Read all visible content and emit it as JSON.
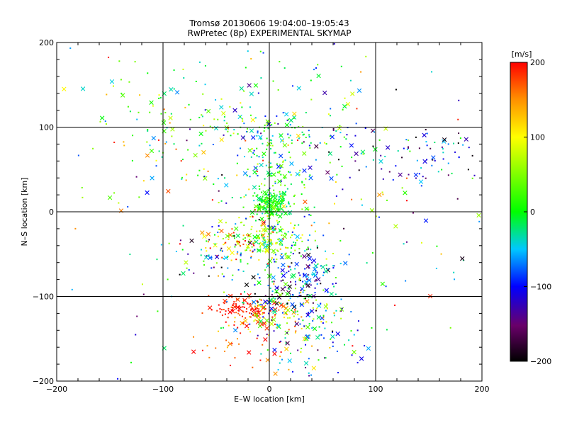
{
  "chart_data": {
    "type": "scatter",
    "title": "Tromsø 20130606 19:04:00–19:05:43",
    "subtitle": "RwPretec (8p) EXPERIMENTAL SKYMAP",
    "xlabel": "E–W location [km]",
    "ylabel": "N–S location [km]",
    "xlim": [
      -200,
      200
    ],
    "ylim": [
      -200,
      200
    ],
    "x_ticks": [
      -200,
      -100,
      0,
      100,
      200
    ],
    "y_ticks": [
      -200,
      -100,
      0,
      100,
      200
    ],
    "x_tick_labels": [
      "−200",
      "−100",
      "0",
      "100",
      "200"
    ],
    "y_tick_labels": [
      "−200",
      "−100",
      "0",
      "100",
      "200"
    ],
    "grid": true,
    "colorbar": {
      "label": "[m/s]",
      "range": [
        -200,
        200
      ],
      "ticks": [
        200,
        100,
        0,
        -100,
        -200
      ],
      "tick_labels": [
        "200",
        "100",
        "0",
        "−100",
        "−200"
      ],
      "colormap": "rainbow: black → purple → blue → cyan → green → yellow → red"
    },
    "markers": [
      "cross",
      "dot"
    ],
    "clusters": [
      {
        "x": 0,
        "y": 10,
        "sx": 8,
        "sy": 8,
        "n": 160,
        "v": 10,
        "vs": 25
      },
      {
        "x": 0,
        "y": -30,
        "sx": 15,
        "sy": 10,
        "n": 140,
        "v": 50,
        "vs": 50
      },
      {
        "x": 5,
        "y": 40,
        "sx": 15,
        "sy": 20,
        "n": 110,
        "v": 0,
        "vs": 45
      },
      {
        "x": 10,
        "y": 95,
        "sx": 40,
        "sy": 12,
        "n": 110,
        "v": -10,
        "vs": 70
      },
      {
        "x": -20,
        "y": -115,
        "sx": 15,
        "sy": 7,
        "n": 90,
        "v": 190,
        "vs": 15
      },
      {
        "x": 10,
        "y": -125,
        "sx": 20,
        "sy": 10,
        "n": 60,
        "v": 90,
        "vs": 70
      },
      {
        "x": 35,
        "y": -75,
        "sx": 15,
        "sy": 15,
        "n": 90,
        "v": -90,
        "vs": 50
      },
      {
        "x": 20,
        "y": -100,
        "sx": 20,
        "sy": 15,
        "n": 70,
        "v": -120,
        "vs": 80
      },
      {
        "x": 40,
        "y": -150,
        "sx": 30,
        "sy": 25,
        "n": 110,
        "v": -40,
        "vs": 90
      },
      {
        "x": -35,
        "y": -40,
        "sx": 12,
        "sy": 10,
        "n": 40,
        "v": 150,
        "vs": 50
      },
      {
        "x": -60,
        "y": -50,
        "sx": 20,
        "sy": 15,
        "n": 40,
        "v": -60,
        "vs": 120
      },
      {
        "x": 0,
        "y": -60,
        "sx": 30,
        "sy": 40,
        "n": 120,
        "v": 20,
        "vs": 100
      },
      {
        "x": -20,
        "y": -155,
        "sx": 20,
        "sy": 20,
        "n": 40,
        "v": 170,
        "vs": 40
      },
      {
        "x": 150,
        "y": 60,
        "sx": 25,
        "sy": 20,
        "n": 60,
        "v": -110,
        "vs": 60
      },
      {
        "x": -90,
        "y": 140,
        "sx": 40,
        "sy": 25,
        "n": 50,
        "v": 10,
        "vs": 50
      },
      {
        "x": 20,
        "y": 140,
        "sx": 40,
        "sy": 35,
        "n": 40,
        "v": -10,
        "vs": 60
      },
      {
        "x": -80,
        "y": 70,
        "sx": 40,
        "sy": 30,
        "n": 60,
        "v": 60,
        "vs": 70
      },
      {
        "x": 60,
        "y": 50,
        "sx": 40,
        "sy": 40,
        "n": 60,
        "v": -20,
        "vs": 100
      },
      {
        "x": 0,
        "y": 0,
        "sx": 120,
        "sy": 110,
        "n": 180,
        "v": 0,
        "vs": 110
      }
    ]
  }
}
